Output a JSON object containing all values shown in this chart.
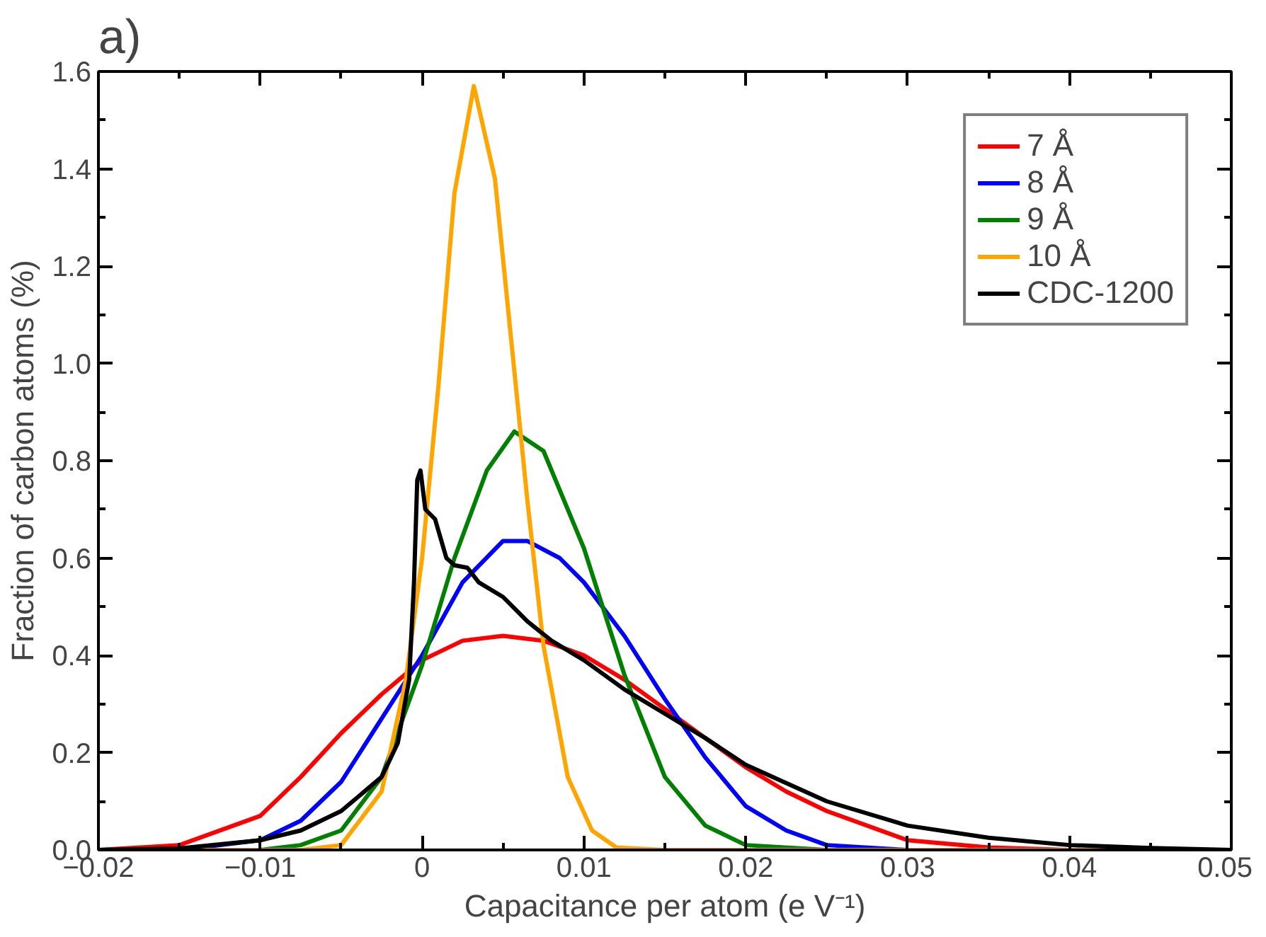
{
  "chart_data": {
    "type": "line",
    "title": "a)",
    "xlabel": "Capacitance per atom (e V⁻¹)",
    "ylabel": "Fraction of carbon atoms (%)",
    "xlim": [
      -0.02,
      0.05
    ],
    "xticks": [
      -0.02,
      -0.01,
      0,
      0.01,
      0.02,
      0.03,
      0.04,
      0.05
    ],
    "ylim": [
      0,
      1.6
    ],
    "yticks": [
      {
        "value": 0,
        "label": "0.0"
      },
      0.2,
      0.4,
      0.6,
      0.8,
      {
        "value": 1,
        "label": "1.0"
      },
      1.2,
      1.4,
      1.6
    ],
    "grid": false,
    "legend": "top right",
    "marker": "none",
    "line_style": "solid",
    "series": [
      {
        "name": "7 Å",
        "color": "#ff0000",
        "x": [
          -0.02,
          -0.015,
          -0.01,
          -0.0075,
          -0.005,
          -0.0025,
          0,
          0.0025,
          0.005,
          0.0075,
          0.01,
          0.0125,
          0.015,
          0.0175,
          0.02,
          0.0225,
          0.025,
          0.03,
          0.035,
          0.04,
          0.05
        ],
        "values": [
          0,
          0.01,
          0.07,
          0.15,
          0.24,
          0.32,
          0.39,
          0.43,
          0.44,
          0.43,
          0.4,
          0.35,
          0.29,
          0.23,
          0.17,
          0.12,
          0.08,
          0.02,
          0.005,
          0,
          0
        ]
      },
      {
        "name": "8 Å",
        "color": "#0000ff",
        "x": [
          -0.02,
          -0.015,
          -0.01,
          -0.0075,
          -0.005,
          -0.0025,
          0,
          0.0025,
          0.005,
          0.0065,
          0.0085,
          0.01,
          0.0125,
          0.015,
          0.0175,
          0.02,
          0.0225,
          0.025,
          0.03,
          0.05
        ],
        "values": [
          0,
          0,
          0.02,
          0.06,
          0.14,
          0.27,
          0.4,
          0.55,
          0.635,
          0.635,
          0.6,
          0.55,
          0.44,
          0.31,
          0.19,
          0.09,
          0.04,
          0.01,
          0,
          0
        ]
      },
      {
        "name": "9 Å",
        "color": "#008000",
        "x": [
          -0.02,
          -0.01,
          -0.0075,
          -0.005,
          -0.0025,
          0,
          0.002,
          0.004,
          0.0057,
          0.0075,
          0.01,
          0.0125,
          0.015,
          0.0175,
          0.02,
          0.025,
          0.05
        ],
        "values": [
          0,
          0,
          0.01,
          0.04,
          0.15,
          0.38,
          0.6,
          0.78,
          0.86,
          0.82,
          0.62,
          0.36,
          0.15,
          0.05,
          0.01,
          0,
          0
        ]
      },
      {
        "name": "10 Å",
        "color": "#ffa500",
        "x": [
          -0.02,
          -0.0075,
          -0.005,
          -0.0025,
          -0.001,
          0,
          0.001,
          0.002,
          0.0032,
          0.0045,
          0.0055,
          0.0065,
          0.0075,
          0.009,
          0.0105,
          0.012,
          0.015,
          0.05
        ],
        "values": [
          0,
          0,
          0.01,
          0.12,
          0.35,
          0.6,
          0.95,
          1.35,
          1.57,
          1.38,
          1.05,
          0.72,
          0.42,
          0.15,
          0.04,
          0.005,
          0,
          0
        ]
      },
      {
        "name": "CDC-1200",
        "color": "#000000",
        "x": [
          -0.02,
          -0.015,
          -0.01,
          -0.0075,
          -0.005,
          -0.0025,
          -0.0015,
          -0.0008,
          -0.0005,
          -0.0003,
          -0.0001,
          0.0002,
          0.0008,
          0.0015,
          0.002,
          0.0028,
          0.0035,
          0.005,
          0.0065,
          0.008,
          0.01,
          0.0125,
          0.015,
          0.0175,
          0.02,
          0.025,
          0.03,
          0.035,
          0.04,
          0.045,
          0.05
        ],
        "values": [
          0,
          0.003,
          0.02,
          0.04,
          0.08,
          0.15,
          0.22,
          0.35,
          0.55,
          0.76,
          0.78,
          0.7,
          0.68,
          0.6,
          0.585,
          0.58,
          0.55,
          0.52,
          0.47,
          0.43,
          0.39,
          0.33,
          0.28,
          0.23,
          0.175,
          0.1,
          0.05,
          0.025,
          0.01,
          0.004,
          0
        ]
      }
    ]
  }
}
